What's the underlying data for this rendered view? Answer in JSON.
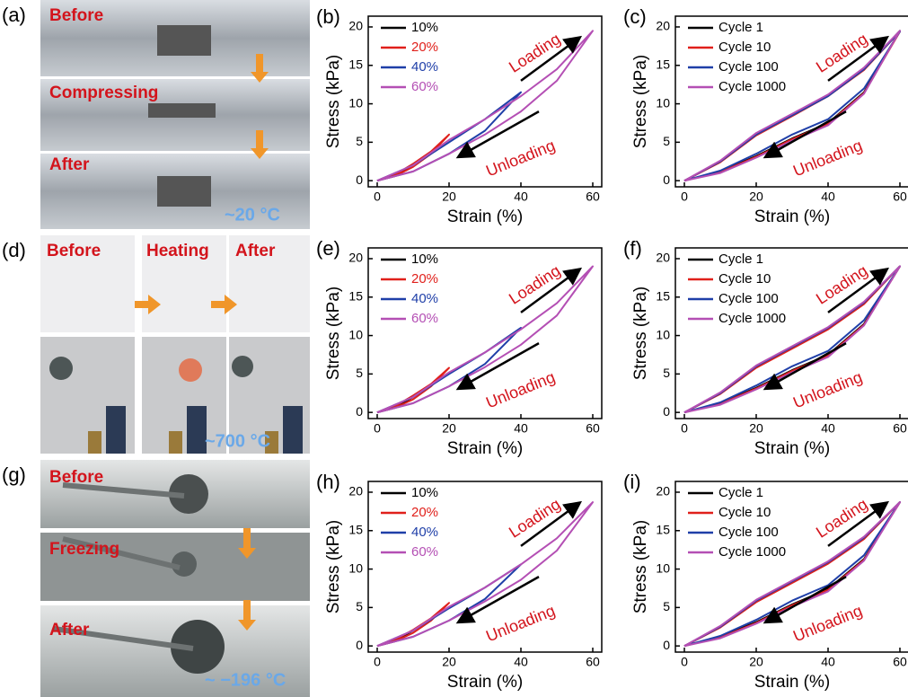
{
  "photos": [
    {
      "panel": "(a)",
      "labels": [
        "Before",
        "Compressing",
        "After"
      ],
      "temperature": "~20 °C"
    },
    {
      "panel": "(d)",
      "labels": [
        "Before",
        "Heating",
        "After"
      ],
      "temperature": "~700 °C"
    },
    {
      "panel": "(g)",
      "labels": [
        "Before",
        "Freezing",
        "After"
      ],
      "temperature": "~ −196 °C"
    }
  ],
  "chart_data": [
    {
      "type": "line",
      "panel": "(b)",
      "xlabel": "Strain (%)",
      "ylabel": "Stress (kPa)",
      "xlim": [
        -2.5,
        62.5
      ],
      "ylim": [
        -0.8,
        21.4
      ],
      "xticks": [
        0,
        20,
        40,
        60
      ],
      "yticks": [
        0,
        5,
        10,
        15,
        20
      ],
      "annotations": [
        "Loading",
        "Unloading"
      ],
      "legend_text_colored": true,
      "series": [
        {
          "name": "10%",
          "color": "#000000",
          "x": [
            0,
            5,
            10,
            5,
            0
          ],
          "values": [
            0,
            0.8,
            2,
            0.7,
            0
          ]
        },
        {
          "name": "20%",
          "color": "#e0201b",
          "x": [
            0,
            5,
            10,
            15,
            20,
            15,
            10,
            5,
            0
          ],
          "values": [
            0,
            0.8,
            2.2,
            3.8,
            6,
            3.5,
            1.8,
            0.6,
            0
          ]
        },
        {
          "name": "40%",
          "color": "#1f3fa8",
          "x": [
            0,
            10,
            20,
            30,
            40,
            30,
            20,
            10,
            0
          ],
          "values": [
            0,
            2,
            5,
            8,
            11.5,
            6.5,
            3.5,
            1.2,
            0
          ]
        },
        {
          "name": "60%",
          "color": "#b44fb4",
          "x": [
            0,
            10,
            20,
            30,
            40,
            50,
            60,
            50,
            40,
            30,
            20,
            10,
            0
          ],
          "values": [
            0,
            2,
            5.3,
            8,
            11,
            14.5,
            19.5,
            13,
            9,
            6,
            3.5,
            1.2,
            0
          ]
        }
      ]
    },
    {
      "type": "line",
      "panel": "(c)",
      "xlabel": "Strain (%)",
      "ylabel": "Stress (kPa)",
      "xlim": [
        -2.5,
        62.5
      ],
      "ylim": [
        -0.8,
        21.4
      ],
      "xticks": [
        0,
        20,
        40,
        60
      ],
      "yticks": [
        0,
        5,
        10,
        15,
        20
      ],
      "annotations": [
        "Loading",
        "Unloading"
      ],
      "legend_text_colored": false,
      "series": [
        {
          "name": "Cycle 1",
          "color": "#000000",
          "x": [
            0,
            10,
            20,
            30,
            40,
            50,
            60,
            50,
            40,
            30,
            20,
            10,
            0
          ],
          "values": [
            0,
            2.5,
            6,
            8.5,
            11,
            14.5,
            19.5,
            11.5,
            7.5,
            5.5,
            3.2,
            1.2,
            0
          ]
        },
        {
          "name": "Cycle 10",
          "color": "#e0201b",
          "x": [
            0,
            10,
            20,
            30,
            40,
            50,
            60,
            50,
            40,
            30,
            20,
            10,
            0
          ],
          "values": [
            0,
            2.4,
            5.9,
            8.4,
            11,
            14.4,
            19.4,
            11.4,
            7.4,
            5.4,
            3.1,
            1.1,
            0
          ]
        },
        {
          "name": "Cycle 100",
          "color": "#1f3fa8",
          "x": [
            0,
            10,
            20,
            30,
            40,
            50,
            60,
            50,
            40,
            30,
            20,
            10,
            0
          ],
          "values": [
            0,
            2.5,
            6,
            8.5,
            11,
            14.5,
            19.4,
            12,
            8,
            6,
            3.5,
            1.3,
            0
          ]
        },
        {
          "name": "Cycle 1000",
          "color": "#b44fb4",
          "x": [
            0,
            10,
            20,
            30,
            40,
            50,
            60,
            50,
            40,
            30,
            20,
            10,
            0
          ],
          "values": [
            0,
            2.6,
            6.2,
            8.7,
            11.2,
            14.7,
            19.5,
            11.3,
            7.2,
            5.2,
            3,
            1,
            0
          ]
        }
      ]
    },
    {
      "type": "line",
      "panel": "(e)",
      "xlabel": "Strain (%)",
      "ylabel": "Stress (kPa)",
      "xlim": [
        -2.5,
        62.5
      ],
      "ylim": [
        -0.8,
        21.4
      ],
      "xticks": [
        0,
        20,
        40,
        60
      ],
      "yticks": [
        0,
        5,
        10,
        15,
        20
      ],
      "annotations": [
        "Loading",
        "Unloading"
      ],
      "legend_text_colored": true,
      "series": [
        {
          "name": "10%",
          "color": "#000000",
          "x": [
            0,
            5,
            10,
            5,
            0
          ],
          "values": [
            0,
            0.8,
            2,
            0.7,
            0
          ]
        },
        {
          "name": "20%",
          "color": "#e0201b",
          "x": [
            0,
            5,
            10,
            15,
            20,
            15,
            10,
            5,
            0
          ],
          "values": [
            0,
            0.8,
            2.2,
            3.7,
            5.8,
            3.4,
            1.7,
            0.6,
            0
          ]
        },
        {
          "name": "40%",
          "color": "#1f3fa8",
          "x": [
            0,
            10,
            20,
            30,
            40,
            30,
            20,
            10,
            0
          ],
          "values": [
            0,
            2,
            5,
            7.8,
            11,
            6.3,
            3.4,
            1.2,
            0
          ]
        },
        {
          "name": "60%",
          "color": "#b44fb4",
          "x": [
            0,
            10,
            20,
            30,
            40,
            50,
            60,
            50,
            40,
            30,
            20,
            10,
            0
          ],
          "values": [
            0,
            2,
            5.2,
            7.8,
            10.8,
            14.2,
            19,
            12.6,
            8.8,
            5.9,
            3.4,
            1.2,
            0
          ]
        }
      ]
    },
    {
      "type": "line",
      "panel": "(f)",
      "xlabel": "Strain (%)",
      "ylabel": "Stress (kPa)",
      "xlim": [
        -2.5,
        62.5
      ],
      "ylim": [
        -0.8,
        21.4
      ],
      "xticks": [
        0,
        20,
        40,
        60
      ],
      "yticks": [
        0,
        5,
        10,
        15,
        20
      ],
      "annotations": [
        "Loading",
        "Unloading"
      ],
      "legend_text_colored": false,
      "series": [
        {
          "name": "Cycle 1",
          "color": "#000000",
          "x": [
            0,
            10,
            20,
            30,
            40,
            50,
            60,
            50,
            40,
            30,
            20,
            10,
            0
          ],
          "values": [
            0,
            2.5,
            5.9,
            8.4,
            10.9,
            14.2,
            19,
            11.5,
            7.5,
            5.5,
            3.2,
            1.2,
            0
          ]
        },
        {
          "name": "Cycle 10",
          "color": "#e0201b",
          "x": [
            0,
            10,
            20,
            30,
            40,
            50,
            60,
            50,
            40,
            30,
            20,
            10,
            0
          ],
          "values": [
            0,
            2.4,
            5.8,
            8.3,
            10.8,
            14.1,
            19,
            11.4,
            7.4,
            5.4,
            3.1,
            1.1,
            0
          ]
        },
        {
          "name": "Cycle 100",
          "color": "#1f3fa8",
          "x": [
            0,
            10,
            20,
            30,
            40,
            50,
            60,
            50,
            40,
            30,
            20,
            10,
            0
          ],
          "values": [
            0,
            2.5,
            6,
            8.5,
            11,
            14.3,
            19,
            12,
            8,
            6,
            3.5,
            1.3,
            0
          ]
        },
        {
          "name": "Cycle 1000",
          "color": "#b44fb4",
          "x": [
            0,
            10,
            20,
            30,
            40,
            50,
            60,
            50,
            40,
            30,
            20,
            10,
            0
          ],
          "values": [
            0,
            2.6,
            6.1,
            8.6,
            11.1,
            14.4,
            19,
            11.3,
            7.2,
            5.2,
            3,
            1,
            0
          ]
        }
      ]
    },
    {
      "type": "line",
      "panel": "(h)",
      "xlabel": "Strain (%)",
      "ylabel": "Stress (kPa)",
      "xlim": [
        -2.5,
        62.5
      ],
      "ylim": [
        -0.8,
        21.4
      ],
      "xticks": [
        0,
        20,
        40,
        60
      ],
      "yticks": [
        0,
        5,
        10,
        15,
        20
      ],
      "annotations": [
        "Loading",
        "Unloading"
      ],
      "legend_text_colored": true,
      "series": [
        {
          "name": "10%",
          "color": "#000000",
          "x": [
            0,
            5,
            10,
            5,
            0
          ],
          "values": [
            0,
            0.8,
            2,
            0.7,
            0
          ]
        },
        {
          "name": "20%",
          "color": "#e0201b",
          "x": [
            0,
            5,
            10,
            15,
            20,
            15,
            10,
            5,
            0
          ],
          "values": [
            0,
            0.8,
            2.1,
            3.6,
            5.6,
            3.3,
            1.7,
            0.6,
            0
          ]
        },
        {
          "name": "40%",
          "color": "#1f3fa8",
          "x": [
            0,
            10,
            20,
            30,
            40,
            30,
            20,
            10,
            0
          ],
          "values": [
            0,
            2,
            4.9,
            7.6,
            10.6,
            6.1,
            3.3,
            1.2,
            0
          ]
        },
        {
          "name": "60%",
          "color": "#b44fb4",
          "x": [
            0,
            10,
            20,
            30,
            40,
            50,
            60,
            50,
            40,
            30,
            20,
            10,
            0
          ],
          "values": [
            0,
            2,
            5.1,
            7.6,
            10.6,
            14,
            18.7,
            12.4,
            8.6,
            5.8,
            3.3,
            1.2,
            0
          ]
        }
      ]
    },
    {
      "type": "line",
      "panel": "(i)",
      "xlabel": "Strain (%)",
      "ylabel": "Stress (kPa)",
      "xlim": [
        -2.5,
        62.5
      ],
      "ylim": [
        -0.8,
        21.4
      ],
      "xticks": [
        0,
        20,
        40,
        60
      ],
      "yticks": [
        0,
        5,
        10,
        15,
        20
      ],
      "annotations": [
        "Loading",
        "Unloading"
      ],
      "legend_text_colored": false,
      "series": [
        {
          "name": "Cycle 1",
          "color": "#000000",
          "x": [
            0,
            10,
            20,
            30,
            40,
            50,
            60,
            50,
            40,
            30,
            20,
            10,
            0
          ],
          "values": [
            0,
            2.5,
            5.8,
            8.3,
            10.8,
            14,
            18.7,
            11.3,
            7.4,
            5.4,
            3.1,
            1.2,
            0
          ]
        },
        {
          "name": "Cycle 10",
          "color": "#e0201b",
          "x": [
            0,
            10,
            20,
            30,
            40,
            50,
            60,
            50,
            40,
            30,
            20,
            10,
            0
          ],
          "values": [
            0,
            2.4,
            5.7,
            8.2,
            10.7,
            13.9,
            18.7,
            11.2,
            7.3,
            5.3,
            3,
            1.1,
            0
          ]
        },
        {
          "name": "Cycle 100",
          "color": "#1f3fa8",
          "x": [
            0,
            10,
            20,
            30,
            40,
            50,
            60,
            50,
            40,
            30,
            20,
            10,
            0
          ],
          "values": [
            0,
            2.5,
            5.9,
            8.4,
            10.9,
            14.1,
            18.7,
            11.8,
            7.9,
            5.9,
            3.4,
            1.3,
            0
          ]
        },
        {
          "name": "Cycle 1000",
          "color": "#b44fb4",
          "x": [
            0,
            10,
            20,
            30,
            40,
            50,
            60,
            50,
            40,
            30,
            20,
            10,
            0
          ],
          "values": [
            0,
            2.6,
            6,
            8.5,
            11,
            14.2,
            18.7,
            11.1,
            7.1,
            5.1,
            2.9,
            1,
            0
          ]
        }
      ]
    }
  ]
}
